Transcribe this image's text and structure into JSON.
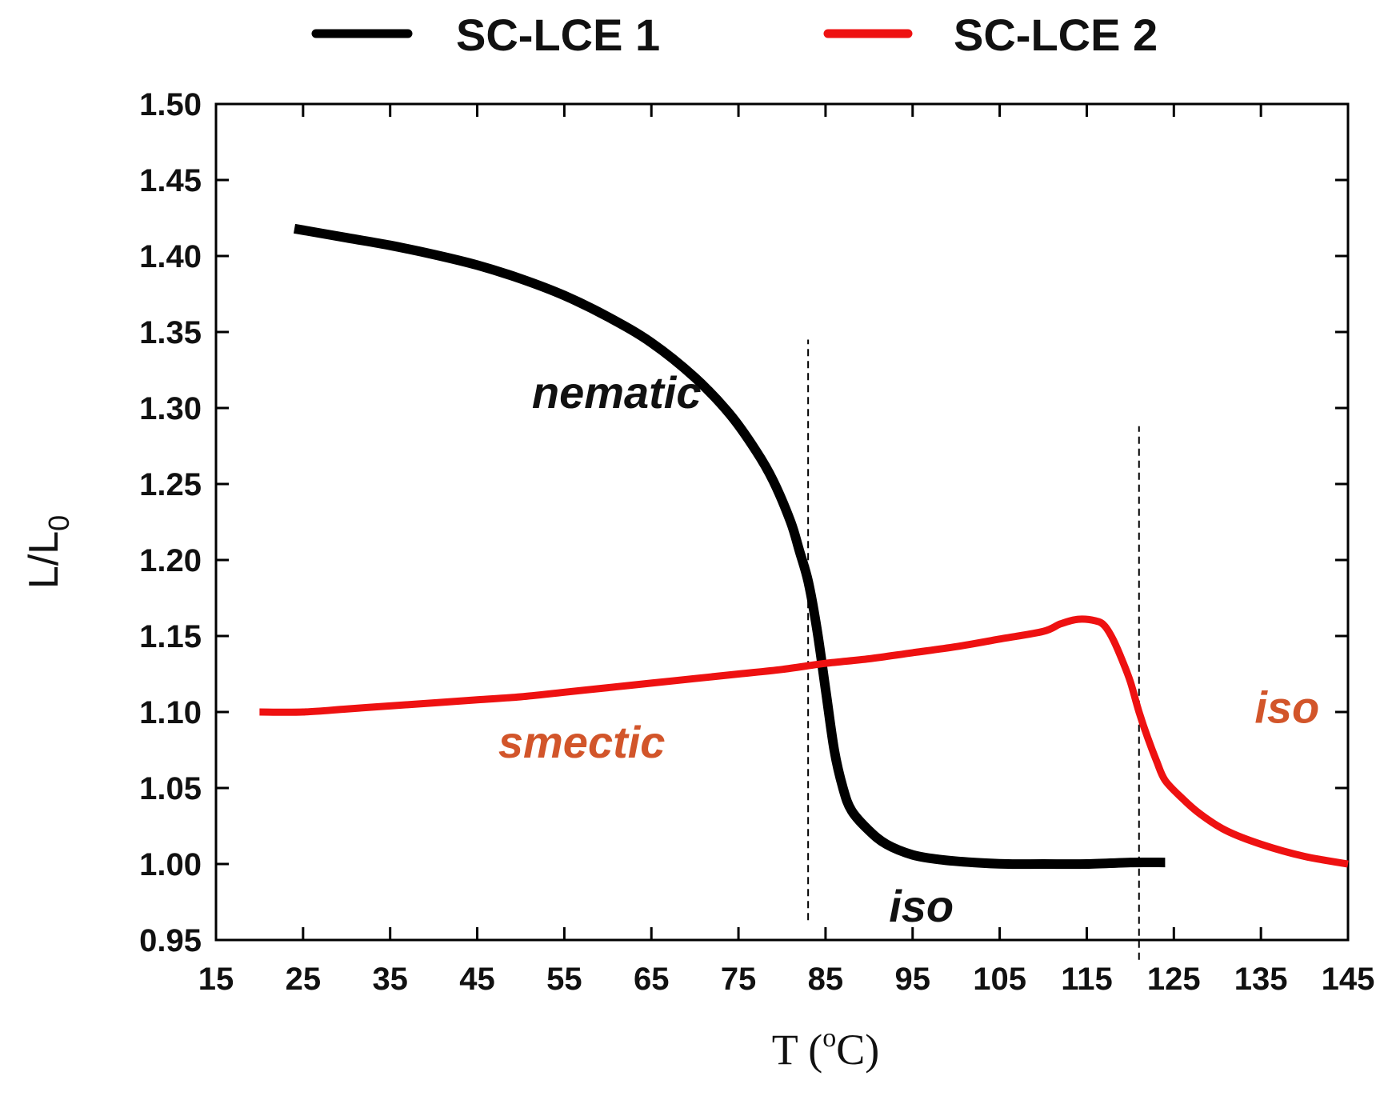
{
  "chart_data": {
    "type": "line",
    "title": "",
    "xlabel": "T (°C)",
    "xlabel_parts": {
      "left": "T (",
      "degree": "o",
      "right": "C)"
    },
    "ylabel": "L/L0",
    "ylabel_parts": {
      "main": "L/L",
      "sub": "0"
    },
    "xlim": [
      15,
      145
    ],
    "ylim": [
      0.95,
      1.5
    ],
    "xticks": [
      15,
      25,
      35,
      45,
      55,
      65,
      75,
      85,
      95,
      105,
      115,
      125,
      135,
      145
    ],
    "yticks": [
      0.95,
      1.0,
      1.05,
      1.1,
      1.15,
      1.2,
      1.25,
      1.3,
      1.35,
      1.4,
      1.45,
      1.5
    ],
    "grid": false,
    "legend_position": "top",
    "series": [
      {
        "name": "SC-LCE 1",
        "color": "#000000",
        "points": [
          [
            24,
            1.418
          ],
          [
            30,
            1.412
          ],
          [
            35,
            1.407
          ],
          [
            40,
            1.401
          ],
          [
            45,
            1.394
          ],
          [
            50,
            1.385
          ],
          [
            55,
            1.374
          ],
          [
            60,
            1.36
          ],
          [
            65,
            1.343
          ],
          [
            70,
            1.32
          ],
          [
            74,
            1.296
          ],
          [
            77,
            1.272
          ],
          [
            79,
            1.252
          ],
          [
            81,
            1.225
          ],
          [
            82,
            1.206
          ],
          [
            83,
            1.186
          ],
          [
            84,
            1.155
          ],
          [
            85,
            1.115
          ],
          [
            86,
            1.075
          ],
          [
            87,
            1.05
          ],
          [
            88,
            1.035
          ],
          [
            90,
            1.022
          ],
          [
            92,
            1.013
          ],
          [
            95,
            1.006
          ],
          [
            98,
            1.003
          ],
          [
            102,
            1.001
          ],
          [
            106,
            1.0
          ],
          [
            110,
            1.0
          ],
          [
            115,
            1.0
          ],
          [
            120,
            1.001
          ],
          [
            124,
            1.001
          ]
        ]
      },
      {
        "name": "SC-LCE 2",
        "color": "#ee1111",
        "points": [
          [
            20,
            1.1
          ],
          [
            25,
            1.1
          ],
          [
            30,
            1.102
          ],
          [
            35,
            1.104
          ],
          [
            40,
            1.106
          ],
          [
            45,
            1.108
          ],
          [
            50,
            1.11
          ],
          [
            55,
            1.113
          ],
          [
            60,
            1.116
          ],
          [
            65,
            1.119
          ],
          [
            70,
            1.122
          ],
          [
            75,
            1.125
          ],
          [
            80,
            1.128
          ],
          [
            85,
            1.132
          ],
          [
            90,
            1.135
          ],
          [
            95,
            1.139
          ],
          [
            100,
            1.143
          ],
          [
            105,
            1.148
          ],
          [
            110,
            1.153
          ],
          [
            112,
            1.158
          ],
          [
            114,
            1.161
          ],
          [
            116,
            1.16
          ],
          [
            117,
            1.157
          ],
          [
            118,
            1.148
          ],
          [
            119,
            1.135
          ],
          [
            120,
            1.12
          ],
          [
            121,
            1.1
          ],
          [
            122,
            1.083
          ],
          [
            123,
            1.068
          ],
          [
            124,
            1.055
          ],
          [
            126,
            1.043
          ],
          [
            128,
            1.033
          ],
          [
            131,
            1.022
          ],
          [
            135,
            1.013
          ],
          [
            140,
            1.005
          ],
          [
            145,
            1.0
          ]
        ]
      }
    ],
    "vlines": [
      {
        "x": 83,
        "y_from": 0.963,
        "y_to": 1.345
      },
      {
        "x": 121,
        "y_from": 0.937,
        "y_to": 1.288
      }
    ],
    "annotations": [
      {
        "text": "nematic",
        "x": 61,
        "y": 1.3,
        "color": "#111111"
      },
      {
        "text": "smectic",
        "x": 57,
        "y": 1.07,
        "color": "#d2552a"
      },
      {
        "text": "iso",
        "x": 96,
        "y": 0.962,
        "color": "#111111"
      },
      {
        "text": "iso",
        "x": 138,
        "y": 1.093,
        "color": "#d2552a"
      }
    ]
  }
}
